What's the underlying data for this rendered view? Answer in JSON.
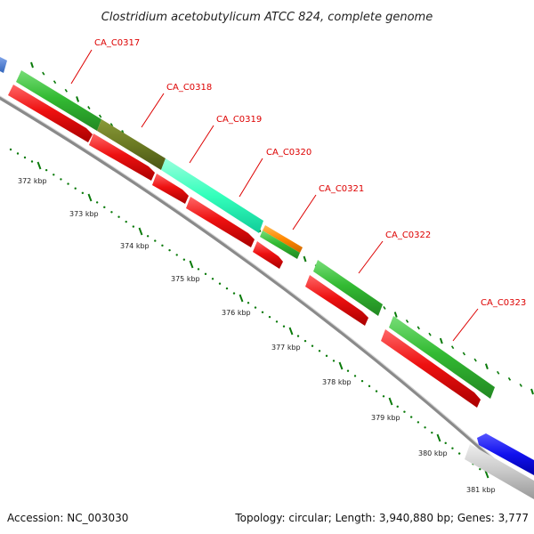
{
  "title": "Clostridium acetobutylicum ATCC 824, complete genome",
  "footer": {
    "accession": "Accession: NC_003030",
    "topology": "Topology: circular; Length: 3,940,880 bp; Genes: 3,777"
  },
  "colors": {
    "label_text": "#dd0000",
    "label_line": "#dd0000",
    "backbone": "#909090",
    "tick": "#0a7a0a",
    "cds_reverse": "#ee1111",
    "cds_forward": "#33bb33",
    "gene_C0318": "#6b7a22",
    "gene_C0319": "#33ffbb",
    "gene_C0320": "#ff8800",
    "upstream_blue": "#4a7fd0",
    "downstream_blue": "#1111ee",
    "downstream_gray": "#c8c8c8"
  },
  "genes": [
    {
      "name": "CA_C0317"
    },
    {
      "name": "CA_C0318"
    },
    {
      "name": "CA_C0319"
    },
    {
      "name": "CA_C0320"
    },
    {
      "name": "CA_C0321"
    },
    {
      "name": "CA_C0322"
    },
    {
      "name": "CA_C0323"
    }
  ],
  "kbp_ticks": [
    "372 kbp",
    "373 kbp",
    "374 kbp",
    "375 kbp",
    "376 kbp",
    "377 kbp",
    "378 kbp",
    "379 kbp",
    "380 kbp",
    "381 kbp"
  ]
}
